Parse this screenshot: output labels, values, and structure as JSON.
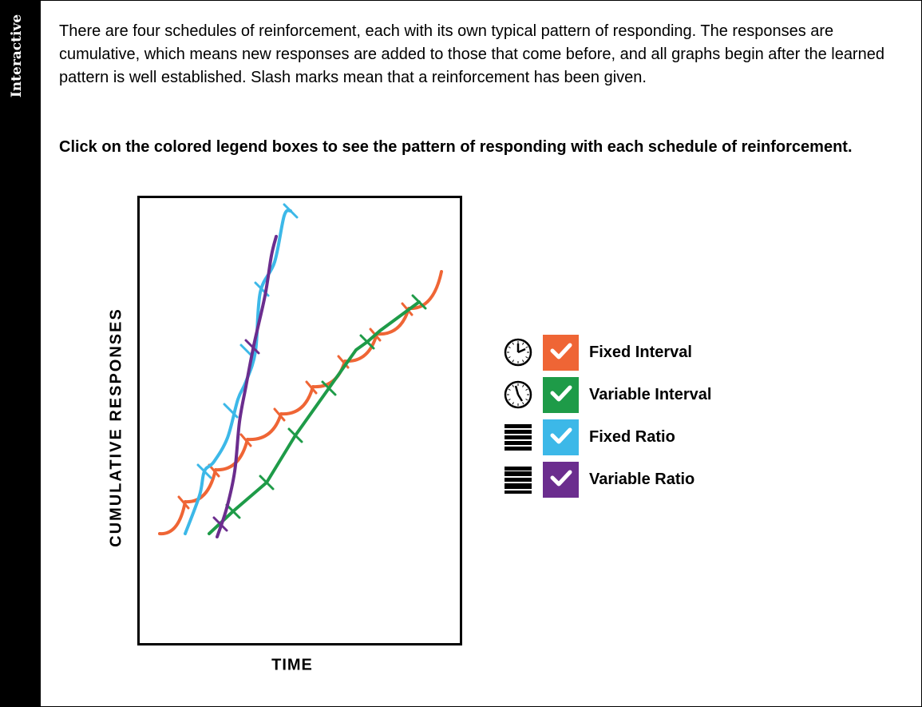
{
  "sidebar": {
    "label": "Interactive"
  },
  "intro_text": "There are four schedules of reinforcement, each with its own typical pattern of responding. The responses are cumulative, which means new responses are added to those that come before, and all graphs begin after the learned pattern is well established. Slash marks mean that a reinforcement has been given.",
  "instruction_text": "Click on the colored legend boxes to see the pattern of responding with each schedule of reinforcement.",
  "chart_data": {
    "type": "line",
    "xlabel": "TIME",
    "ylabel": "CUMULATIVE RESPONSES",
    "series": [
      {
        "name": "Fixed Interval",
        "color": "#ef6535",
        "icon": "clock-regular-icon",
        "checked": true,
        "points": [
          [
            200,
            668
          ],
          [
            232,
            628
          ],
          [
            270,
            588
          ],
          [
            310,
            550
          ],
          [
            352,
            518
          ],
          [
            392,
            484
          ],
          [
            432,
            452
          ],
          [
            472,
            418
          ],
          [
            512,
            386
          ],
          [
            553,
            340
          ]
        ],
        "marks": [
          [
            232,
            628
          ],
          [
            270,
            588
          ],
          [
            310,
            550
          ],
          [
            352,
            518
          ],
          [
            392,
            484
          ],
          [
            432,
            452
          ],
          [
            472,
            418
          ],
          [
            512,
            386
          ]
        ]
      },
      {
        "name": "Variable Interval",
        "color": "#1e9b48",
        "icon": "clock-irregular-icon",
        "checked": true,
        "points": [
          [
            262,
            668
          ],
          [
            292,
            640
          ],
          [
            334,
            604
          ],
          [
            370,
            545
          ],
          [
            412,
            486
          ],
          [
            446,
            438
          ],
          [
            460,
            428
          ],
          [
            476,
            414
          ],
          [
            525,
            378
          ]
        ],
        "marks": [
          [
            292,
            640
          ],
          [
            334,
            604
          ],
          [
            370,
            545
          ],
          [
            412,
            486
          ],
          [
            460,
            428
          ],
          [
            525,
            378
          ]
        ]
      },
      {
        "name": "Fixed Ratio",
        "color": "#3cb8e8",
        "icon": "bars-even-icon",
        "checked": true,
        "points": [
          [
            232,
            668
          ],
          [
            250,
            620
          ],
          [
            256,
            590
          ],
          [
            268,
            578
          ],
          [
            285,
            548
          ],
          [
            298,
            500
          ],
          [
            308,
            478
          ],
          [
            320,
            440
          ],
          [
            326,
            366
          ],
          [
            344,
            328
          ],
          [
            356,
            270
          ],
          [
            364,
            264
          ]
        ],
        "marks": [
          [
            256,
            590
          ],
          [
            289,
            514
          ],
          [
            310,
            440
          ],
          [
            328,
            362
          ],
          [
            364,
            264
          ]
        ]
      },
      {
        "name": "Variable Ratio",
        "color": "#6b2d8e",
        "icon": "bars-uneven-icon",
        "checked": true,
        "points": [
          [
            272,
            672
          ],
          [
            284,
            636
          ],
          [
            294,
            590
          ],
          [
            300,
            528
          ],
          [
            308,
            484
          ],
          [
            318,
            432
          ],
          [
            332,
            370
          ],
          [
            340,
            320
          ],
          [
            346,
            296
          ]
        ],
        "marks": [
          [
            276,
            656
          ],
          [
            316,
            434
          ]
        ]
      }
    ]
  }
}
